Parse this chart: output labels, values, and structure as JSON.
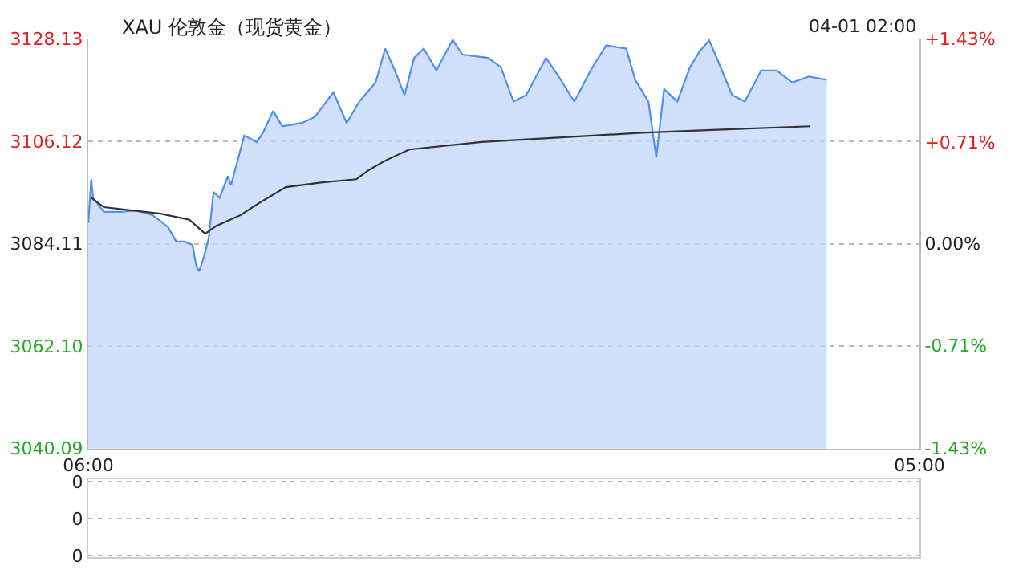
{
  "chart_data": [
    {
      "type": "area",
      "title": "XAU 伦敦金（现货黄金）",
      "annotations": [
        "04-01 02:00"
      ],
      "series": [
        {
          "color": "#4f8ff0",
          "x": [
            "--03-31T06:00",
            "--03-31T06:05",
            "--03-31T06:08",
            "--03-31T06:26",
            "--03-31T06:53",
            "--03-31T07:20",
            "--03-31T07:47",
            "--03-31T08:00",
            "--03-31T08:13",
            "--03-31T08:26",
            "--03-31T08:40",
            "--03-31T08:53",
            "--03-31T08:59",
            "--03-31T09:04",
            "--03-31T09:12",
            "--03-31T09:20",
            "--03-31T09:28",
            "--03-31T09:38",
            "--03-31T09:52",
            "--03-31T09:57",
            "--03-31T10:19",
            "--03-31T10:40",
            "--03-31T10:50",
            "--03-31T11:07",
            "--03-31T11:22",
            "--03-31T11:55",
            "--03-31T12:16",
            "--03-31T12:47",
            "--03-31T13:09",
            "--03-31T13:30",
            "--03-31T13:57",
            "--03-31T14:13",
            "--03-31T14:29",
            "--03-31T14:45",
            "--03-31T15:01",
            "--03-31T15:17",
            "--03-31T15:38",
            "--03-31T16:05",
            "--03-31T16:21",
            "--03-31T17:04",
            "--03-31T17:25",
            "--03-31T17:46",
            "--03-31T18:07",
            "--03-31T18:40",
            "--03-31T19:01",
            "--03-31T19:27",
            "--03-31T19:54",
            "--03-31T20:20",
            "--03-31T20:53",
            "--03-31T21:08",
            "--03-31T21:30",
            "--03-31T21:43",
            "--03-31T21:56",
            "--03-31T22:18",
            "--03-31T22:39",
            "--03-31T22:55",
            "--03-31T23:11",
            "--03-31T23:32",
            "--03-31T23:49",
            "--04-01T00:10",
            "--04-01T00:37",
            "--04-01T01:03",
            "--04-01T01:29",
            "--04-01T01:56",
            "--04-01T02:26"
          ],
          "values": [
            3088.6,
            3098.0,
            3094.0,
            3091.0,
            3091.0,
            3091.3,
            3090.3,
            3089.0,
            3087.6,
            3084.6,
            3084.6,
            3083.9,
            3079.6,
            3078.2,
            3081.3,
            3085.3,
            3095.3,
            3094.0,
            3098.7,
            3096.7,
            3107.4,
            3106.0,
            3108.0,
            3112.7,
            3109.4,
            3110.1,
            3111.4,
            3116.7,
            3110.1,
            3114.7,
            3118.8,
            3126.1,
            3121.4,
            3116.1,
            3124.1,
            3126.1,
            3121.4,
            3128.0,
            3124.8,
            3124.1,
            3122.1,
            3114.7,
            3116.1,
            3124.1,
            3120.1,
            3114.7,
            3121.4,
            3126.8,
            3126.1,
            3119.4,
            3114.7,
            3102.7,
            3117.4,
            3114.7,
            3122.1,
            3125.5,
            3127.9,
            3121.4,
            3116.1,
            3114.7,
            3121.4,
            3121.4,
            3118.8,
            3120.1,
            3119.4
          ]
        },
        {
          "type": "line",
          "color": "#333333",
          "x": [
            "--03-31T06:05",
            "--03-31T06:26",
            "--03-31T08:00",
            "--03-31T08:48",
            "--03-31T09:14",
            "--03-31T09:33",
            "--03-31T10:13",
            "--03-31T10:40",
            "--03-31T11:28",
            "--03-31T12:26",
            "--03-31T13:25",
            "--03-31T13:46",
            "--03-31T14:13",
            "--03-31T14:53",
            "--03-31T16:53",
            "--03-31T19:06",
            "--03-31T21:19",
            "--03-31T23:32",
            "--04-01T01:59"
          ],
          "values": [
            3094.0,
            3092.0,
            3090.6,
            3089.3,
            3086.3,
            3088.0,
            3090.3,
            3092.6,
            3096.3,
            3097.3,
            3098.0,
            3100.0,
            3102.0,
            3104.4,
            3106.0,
            3107.0,
            3108.0,
            3108.7,
            3109.4
          ]
        }
      ],
      "xlim": [
        "--03-31T06:00",
        "--04-01T05:00"
      ],
      "xticks": [
        {
          "value": "--03-31T06:00",
          "label": "06:00"
        },
        {
          "value": "--04-01T05:00",
          "label": "05:00"
        }
      ],
      "ylim": [
        3040.09,
        3128.13
      ],
      "yticks": [
        {
          "value": 3040.09,
          "label": "3040.09"
        },
        {
          "value": 3062.1,
          "label": "3062.10"
        },
        {
          "value": 3084.11,
          "label": "3084.11"
        },
        {
          "value": 3106.12,
          "label": "3106.12"
        },
        {
          "value": 3128.13,
          "label": "3128.13"
        }
      ],
      "y2lim": [
        -1.43,
        1.43
      ],
      "y2ticks": [
        {
          "value": -1.43,
          "label": "-1.43%"
        },
        {
          "value": -0.71,
          "label": "-0.71%"
        },
        {
          "value": 0,
          "label": "0.00%"
        },
        {
          "value": 0.71,
          "label": "+0.71%"
        },
        {
          "value": 1.43,
          "label": "+1.43%"
        }
      ],
      "grid": "y",
      "legend": false
    },
    {
      "type": "other",
      "annotations": [
        "0",
        "0",
        "0"
      ]
    }
  ]
}
